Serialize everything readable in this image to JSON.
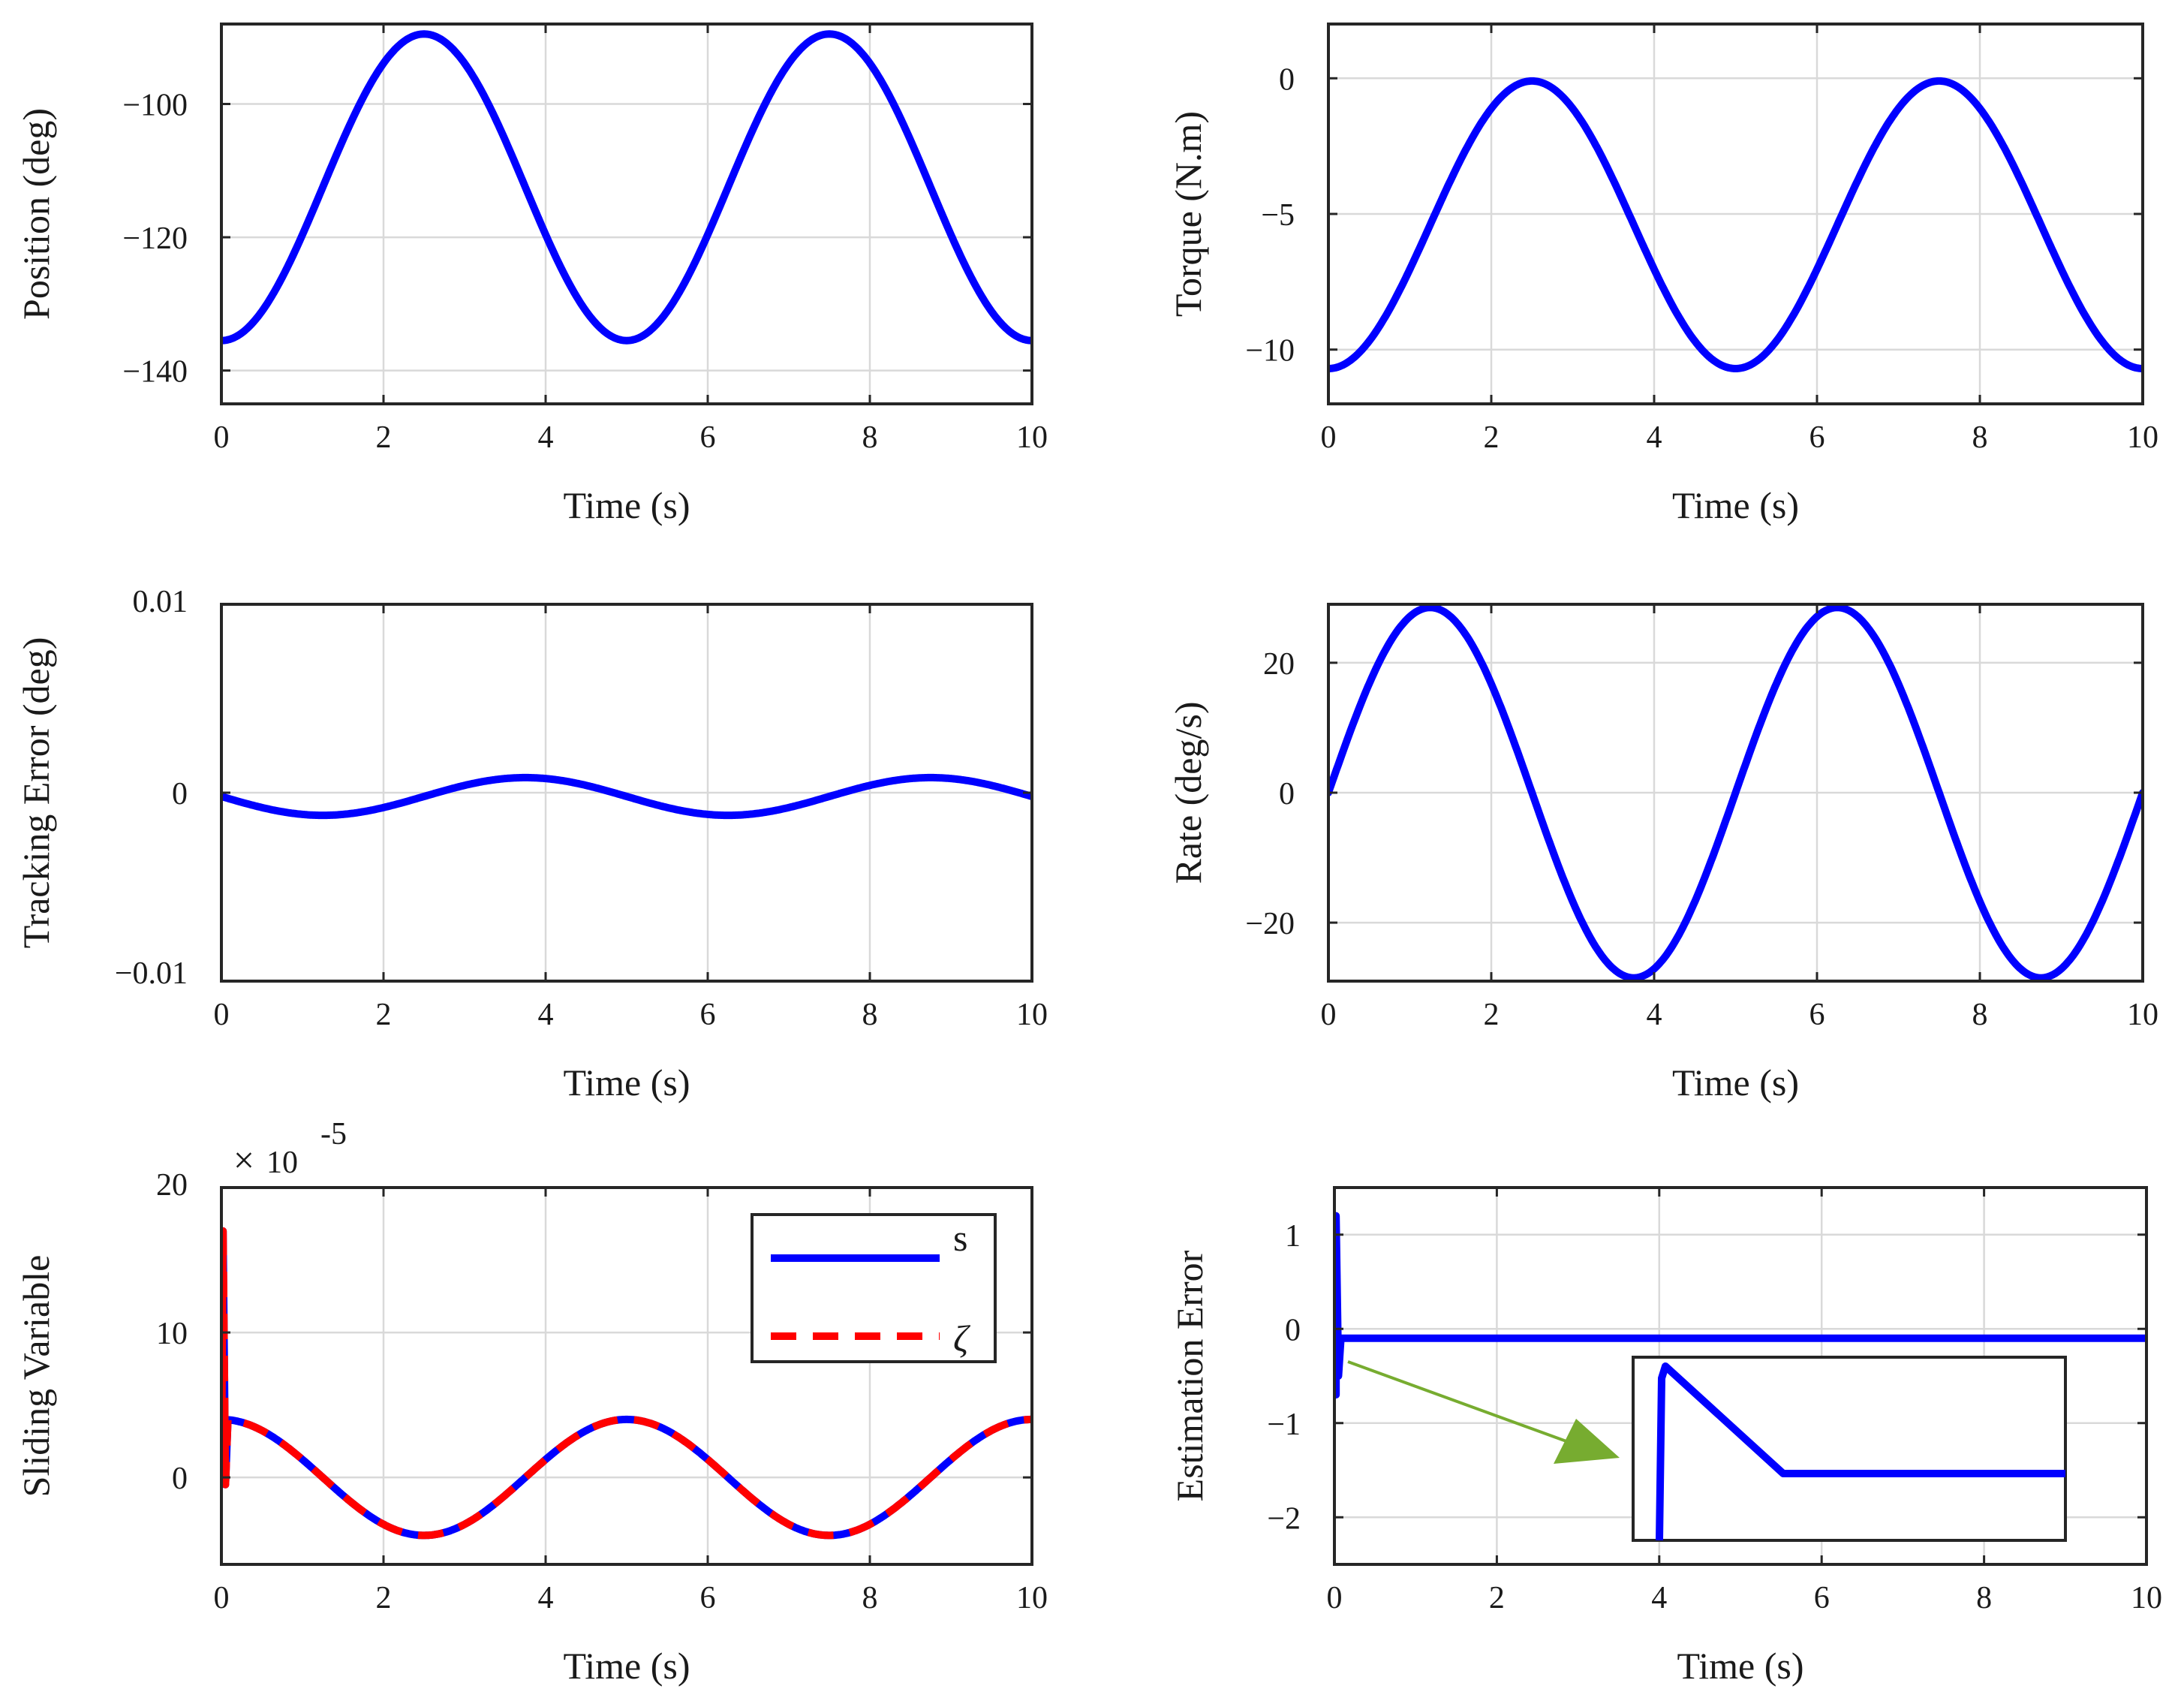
{
  "figure": {
    "colors": {
      "primary": "#0000ff",
      "secondary": "#ff0000",
      "annotation": "#77ac30",
      "axis": "#262626",
      "grid": "#d9d9d9"
    }
  },
  "chart_data": [
    {
      "id": "position",
      "type": "line",
      "xlabel": "Time (s)",
      "ylabel": "Position (deg)",
      "xlim": [
        0,
        10
      ],
      "ylim": [
        -145,
        -88
      ],
      "xticks": [
        0,
        2,
        4,
        6,
        8,
        10
      ],
      "xtick_labels": [
        "0",
        "2",
        "4",
        "6",
        "8",
        "10"
      ],
      "yticks": [
        -100,
        -120,
        -140
      ],
      "ytick_labels": [
        "−100",
        "−120",
        "−140"
      ],
      "grid": true,
      "series": [
        {
          "name": "position",
          "color": "#0000ff",
          "function": "sine",
          "mean": -112.5,
          "amplitude": 23,
          "period": 5,
          "phase_at_zero": "minimum"
        }
      ]
    },
    {
      "id": "torque",
      "type": "line",
      "xlabel": "Time (s)",
      "ylabel": "Torque (N.m)",
      "xlim": [
        0,
        10
      ],
      "ylim": [
        -12,
        2
      ],
      "xticks": [
        0,
        2,
        4,
        6,
        8,
        10
      ],
      "xtick_labels": [
        "0",
        "2",
        "4",
        "6",
        "8",
        "10"
      ],
      "yticks": [
        0,
        -5,
        -10
      ],
      "ytick_labels": [
        "0",
        "−5",
        "−10"
      ],
      "grid": true,
      "series": [
        {
          "name": "torque",
          "color": "#0000ff",
          "function": "sine",
          "mean": -5.4,
          "amplitude": 5.3,
          "period": 5,
          "phase_at_zero": "minimum"
        }
      ]
    },
    {
      "id": "tracking_error",
      "type": "line",
      "xlabel": "Time (s)",
      "ylabel": "Tracking Error (deg)",
      "xlim": [
        0,
        10
      ],
      "ylim": [
        -0.01,
        0.01
      ],
      "xticks": [
        0,
        2,
        4,
        6,
        8,
        10
      ],
      "xtick_labels": [
        "0",
        "2",
        "4",
        "6",
        "8",
        "10"
      ],
      "yticks": [
        0.01,
        0,
        -0.01
      ],
      "ytick_labels": [
        "0.01",
        "0",
        "−0.01"
      ],
      "grid": true,
      "series": [
        {
          "name": "error",
          "color": "#0000ff",
          "function": "sine",
          "mean": -0.0002,
          "amplitude": 0.001,
          "period": 5,
          "phase_at_zero": "falling"
        }
      ]
    },
    {
      "id": "rate",
      "type": "line",
      "xlabel": "Time (s)",
      "ylabel": "Rate (deg/s)",
      "xlim": [
        0,
        10
      ],
      "ylim": [
        -29,
        29
      ],
      "xticks": [
        0,
        2,
        4,
        6,
        8,
        10
      ],
      "xtick_labels": [
        "0",
        "2",
        "4",
        "6",
        "8",
        "10"
      ],
      "yticks": [
        20,
        0,
        -20
      ],
      "ytick_labels": [
        "20",
        "0",
        "−20"
      ],
      "grid": true,
      "series": [
        {
          "name": "rate",
          "color": "#0000ff",
          "function": "sine",
          "mean": 0,
          "amplitude": 28.5,
          "period": 5,
          "phase_at_zero": "rising"
        }
      ]
    },
    {
      "id": "sliding_variable",
      "type": "line",
      "xlabel": "Time (s)",
      "ylabel": "Sliding Variable",
      "xlim": [
        0,
        10
      ],
      "ylim": [
        -6,
        20
      ],
      "xticks": [
        0,
        2,
        4,
        6,
        8,
        10
      ],
      "xtick_labels": [
        "0",
        "2",
        "4",
        "6",
        "8",
        "10"
      ],
      "yticks": [
        20,
        10,
        0
      ],
      "ytick_labels": [
        "20",
        "10",
        "0"
      ],
      "multiplier": {
        "times": "×",
        "base": "10",
        "exponent": "-5"
      },
      "grid": true,
      "legend": {
        "position": "top-right",
        "entries": [
          {
            "label": "s",
            "color": "#0000ff",
            "style": "solid"
          },
          {
            "label": "ζ",
            "color": "#ff0000",
            "style": "dashed"
          }
        ]
      },
      "series": [
        {
          "name": "s",
          "color": "#0000ff",
          "style": "solid",
          "function": "cosine",
          "mean": 0,
          "amplitude": 4,
          "period": 5,
          "initial_spike": [
            -0.5,
            17
          ]
        },
        {
          "name": "ζ",
          "color": "#ff0000",
          "style": "dashed",
          "function": "cosine",
          "mean": 0,
          "amplitude": 4,
          "period": 5,
          "initial_spike": [
            -0.5,
            17
          ]
        }
      ]
    },
    {
      "id": "estimation_error",
      "type": "line",
      "xlabel": "Time (s)",
      "ylabel": "Estimation Error",
      "xlim": [
        0,
        10
      ],
      "ylim": [
        -2.5,
        1.5
      ],
      "xticks": [
        0,
        2,
        4,
        6,
        8,
        10
      ],
      "xtick_labels": [
        "0",
        "2",
        "4",
        "6",
        "8",
        "10"
      ],
      "yticks": [
        1,
        0,
        -1,
        -2
      ],
      "ytick_labels": [
        "1",
        "0",
        "−1",
        "−2"
      ],
      "grid": true,
      "series": [
        {
          "name": "estimation_error",
          "color": "#0000ff",
          "steady_value": -0.1,
          "initial_spike": [
            -0.7,
            1.2
          ]
        }
      ],
      "inset": {
        "description_none": "",
        "zoom_of": "initial transient",
        "shape": "spike then linear decay to plateau",
        "arrow_color": "#77ac30"
      }
    }
  ]
}
